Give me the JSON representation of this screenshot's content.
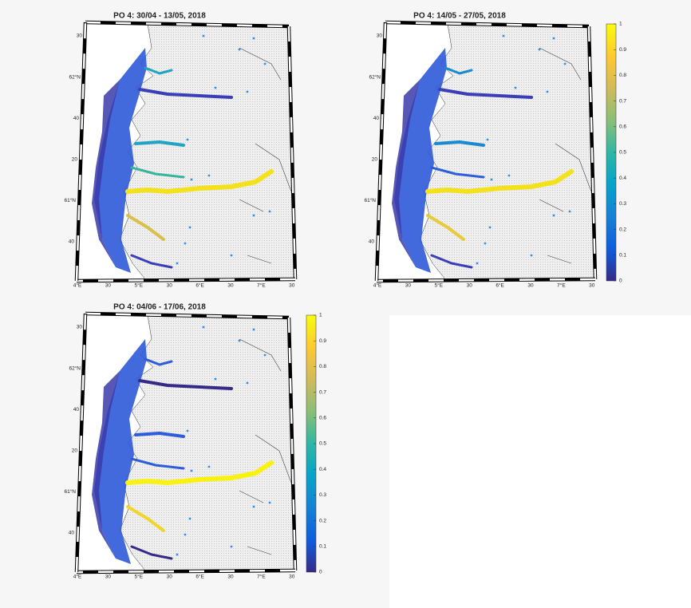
{
  "panels": [
    {
      "title": "PO 4: 30/04 - 13/05, 2018",
      "colorbar": false,
      "x_labels": [
        "4°E",
        "30",
        "5°E",
        "30",
        "6°E",
        "30",
        "7°E",
        "30"
      ],
      "y_labels": [
        "30",
        "62°N",
        "40",
        "20",
        "61°N",
        "40"
      ]
    },
    {
      "title": "PO 4: 14/05 - 27/05, 2018",
      "colorbar": true,
      "x_labels": [
        "4°E",
        "30",
        "5°E",
        "30",
        "6°E",
        "30",
        "7°E",
        "30"
      ],
      "y_labels": [
        "30",
        "62°N",
        "40",
        "20",
        "61°N",
        "40"
      ]
    },
    {
      "title": "PO 4: 04/06 - 17/06, 2018",
      "colorbar": true,
      "x_labels": [
        "4°E",
        "30",
        "5°E",
        "30",
        "6°E",
        "30",
        "7°E",
        "30"
      ],
      "y_labels": [
        "30",
        "62°N",
        "40",
        "20",
        "61°N",
        "40"
      ]
    }
  ],
  "colorbar": {
    "clim": [
      0,
      1
    ],
    "ticks": [
      0,
      0.1,
      0.2,
      0.3,
      0.4,
      0.5,
      0.6,
      0.7,
      0.8,
      0.9,
      1
    ]
  }
}
